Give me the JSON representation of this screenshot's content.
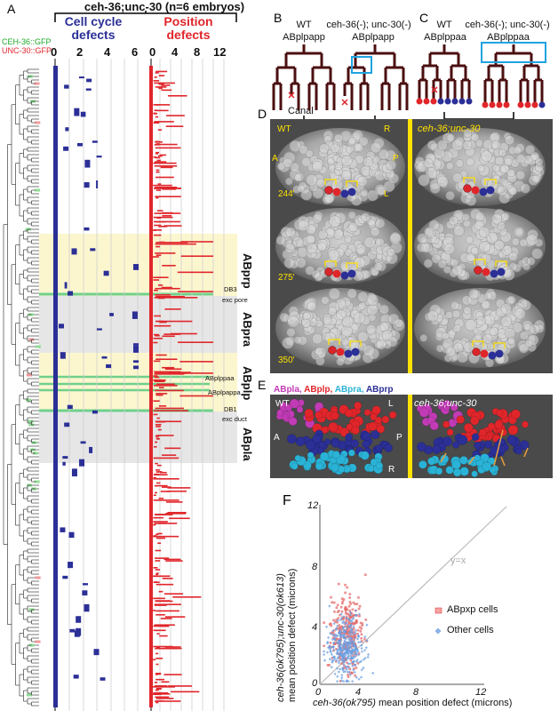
{
  "panels": {
    "a": "A",
    "b": "B",
    "c": "C",
    "d": "D",
    "e": "E",
    "f": "F"
  },
  "panel_a": {
    "title": "ceh-36;unc-30 (n=6 embryos)",
    "legend_ceh": "CEH-36::GFP",
    "legend_unc": "UNC-30::GFP",
    "header_cell_cycle": "Cell cycle defects",
    "header_position": "Position defects",
    "cc_ticks": [
      "0",
      "2",
      "4",
      "6"
    ],
    "pos_ticks": [
      "0",
      "4",
      "8",
      "12"
    ],
    "pos_extra_ticks": [
      "2",
      "6",
      "10"
    ],
    "regions": [
      "ABprp",
      "ABpra",
      "ABplp",
      "ABpla"
    ],
    "cell_labels": [
      "DB3",
      "exc pore",
      "ABplppaa",
      "ABplpappa",
      "DB1",
      "exc duct"
    ],
    "colors": {
      "cell_cycle": "#2b2f96",
      "position": "#e0262b",
      "ceh_gfp": "#1aa82a",
      "unc_gfp": "#e0262b",
      "highlight_yellow": "#fcf6cf",
      "highlight_grey": "#e6e6e6",
      "green_line": "#6fd08c"
    }
  },
  "panel_b": {
    "wt": "WT",
    "mut": "ceh-36(-); unc-30(-)",
    "cell": "ABplpapp",
    "cell_mut": "ABplpapp",
    "canal": "Canal"
  },
  "panel_c": {
    "wt": "WT",
    "mut": "ceh-36(-); unc-30(-)",
    "cell": "ABplppaa",
    "cell_mut": "ABplppaa"
  },
  "panel_d": {
    "wt": "WT",
    "mut": "ceh-36;unc-30",
    "axes": [
      "R",
      "A",
      "P",
      "L"
    ],
    "times": [
      "244'",
      "275'",
      "350'"
    ]
  },
  "panel_e": {
    "legend": [
      "ABpla,",
      "ABplp,",
      "ABpra,",
      "ABprp"
    ],
    "legend_colors": [
      "#c23bb6",
      "#e0262b",
      "#2ab3d6",
      "#2b2f96"
    ],
    "wt": "WT",
    "mut": "ceh-36;unc-30",
    "axes": [
      "L",
      "A",
      "P",
      "R"
    ]
  },
  "panel_f": {
    "ylabel_1": "ceh-36(ok795);unc-30(ok613)",
    "ylabel_2": "mean position defect (microns)",
    "xlabel_1": "ceh-36(ok795)",
    "xlabel_2": " mean position defect (microns)",
    "ticks": [
      "0",
      "4",
      "8",
      "12"
    ],
    "diag": "y=x",
    "legend": [
      "ABpxp cells",
      "Other cells"
    ]
  },
  "chart_data": {
    "type": "scatter",
    "xlabel": "ceh-36(ok795) mean position defect (microns)",
    "ylabel": "ceh-36(ok795);unc-30(ok613) mean position defect (microns)",
    "xlim": [
      0,
      12
    ],
    "ylim": [
      0,
      12
    ],
    "series": [
      {
        "name": "ABpxp cells",
        "color": "#e0262b",
        "center": [
          1.9,
          3.4
        ],
        "spread": [
          0.6,
          1.4
        ]
      },
      {
        "name": "Other cells",
        "color": "#5a8fd6",
        "center": [
          1.9,
          2.4
        ],
        "spread": [
          0.7,
          1.0
        ]
      }
    ]
  }
}
